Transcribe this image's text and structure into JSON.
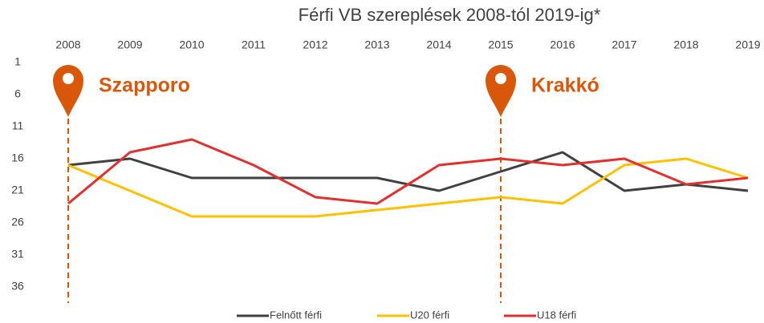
{
  "chart_data": {
    "type": "line",
    "title": "Férfi VB szereplések 2008-tól 2019-ig*",
    "categories": [
      "2008",
      "2009",
      "2010",
      "2011",
      "2012",
      "2013",
      "2014",
      "2015",
      "2016",
      "2017",
      "2018",
      "2019"
    ],
    "series": [
      {
        "name": "Felnőtt férfi",
        "color": "#404040",
        "values": [
          17,
          16,
          19,
          19,
          19,
          19,
          21,
          18,
          15,
          21,
          20,
          21
        ]
      },
      {
        "name": "U20 férfi",
        "color": "#ffc000",
        "values": [
          17,
          21,
          25,
          25,
          25,
          24,
          23,
          22,
          23,
          17,
          16,
          19
        ]
      },
      {
        "name": "U18 férfi",
        "color": "#e03030",
        "values": [
          23,
          15,
          13,
          17,
          22,
          23,
          17,
          16,
          17,
          16,
          20,
          19
        ]
      }
    ],
    "ylim": [
      1,
      36
    ],
    "y_inverted": true,
    "yticks": [
      1,
      6,
      11,
      16,
      21,
      26,
      31,
      36
    ],
    "grid": false,
    "legend": "bottom",
    "annotations": [
      {
        "category": "2008",
        "text": "Szapporo",
        "color": "#d9570a"
      },
      {
        "category": "2015",
        "text": "Krakkó",
        "color": "#d9570a"
      }
    ]
  }
}
